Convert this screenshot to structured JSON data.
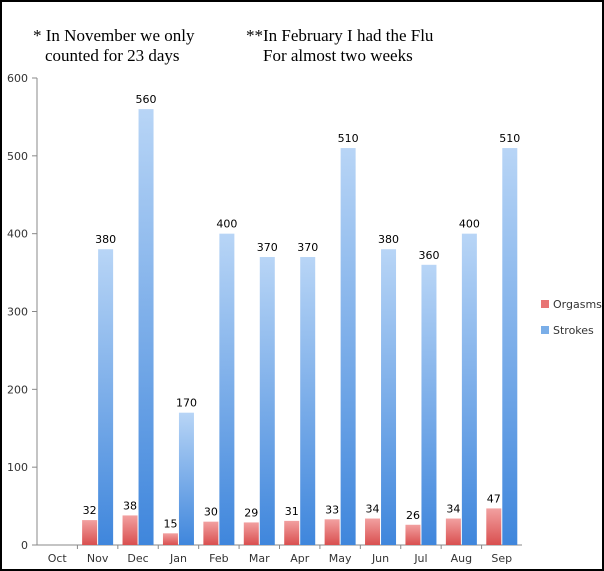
{
  "notes": {
    "note1": {
      "line1": "* In November we only",
      "line2": "counted for 23 days"
    },
    "note2": {
      "line1": "**In February I had the Flu",
      "line2": "For almost two weeks"
    }
  },
  "chart_data": {
    "type": "bar",
    "categories": [
      "Oct",
      "Nov",
      "Dec",
      "Jan",
      "Feb",
      "Mar",
      "Apr",
      "May",
      "Jun",
      "Jul",
      "Aug",
      "Sep"
    ],
    "series": [
      {
        "name": "Orgasms",
        "values": [
          null,
          32,
          38,
          15,
          30,
          29,
          31,
          33,
          34,
          26,
          34,
          47
        ],
        "color": "#e87474"
      },
      {
        "name": "Strokes",
        "values": [
          null,
          380,
          560,
          170,
          400,
          370,
          370,
          510,
          380,
          360,
          400,
          510
        ],
        "color": "#7aaee8"
      }
    ],
    "ylim": [
      0,
      600
    ],
    "yticks": [
      0,
      100,
      200,
      300,
      400,
      500,
      600
    ],
    "grid": false,
    "legend": "right",
    "data_labels": true
  }
}
